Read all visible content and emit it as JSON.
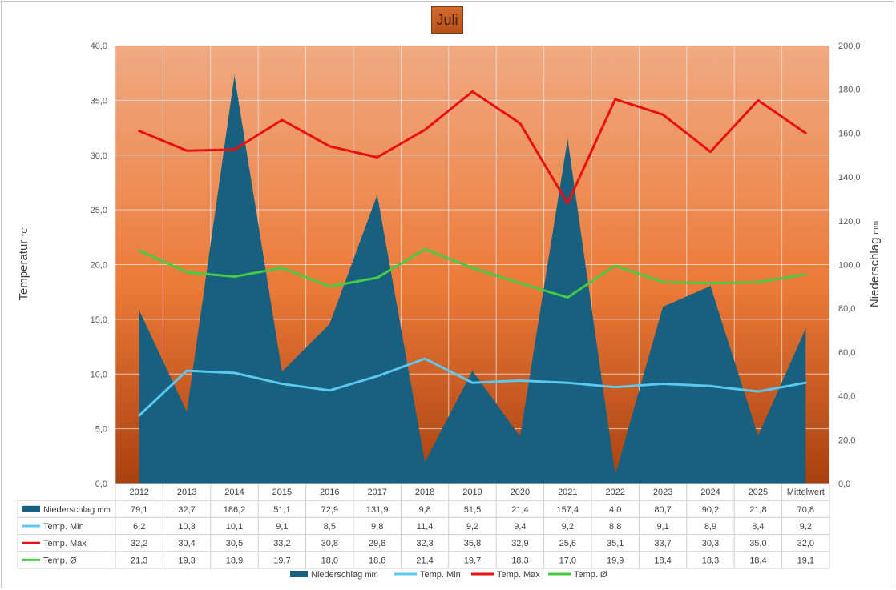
{
  "chart_data": {
    "type": "line",
    "title": "Juli",
    "categories": [
      "2012",
      "2013",
      "2014",
      "2015",
      "2016",
      "2017",
      "2018",
      "2019",
      "2020",
      "2021",
      "2022",
      "2023",
      "2024",
      "2025",
      "Mittelwert"
    ],
    "y_left": {
      "label": "Temperatur",
      "unit": "°C",
      "range": [
        0,
        40
      ],
      "ticks": [
        "0,0",
        "5,0",
        "10,0",
        "15,0",
        "20,0",
        "25,0",
        "30,0",
        "35,0",
        "40,0"
      ]
    },
    "y_right": {
      "label": "Niederschlag",
      "unit": "mm",
      "range": [
        0,
        200
      ],
      "ticks": [
        "0,0",
        "20,0",
        "40,0",
        "60,0",
        "80,0",
        "100,0",
        "120,0",
        "140,0",
        "160,0",
        "180,0",
        "200,0"
      ]
    },
    "grid": true,
    "legend_position": "bottom",
    "series": [
      {
        "name": "Niederschlag",
        "unit": "mm",
        "kind": "area",
        "axis": "right",
        "color": "#17607f",
        "values": [
          79.1,
          32.7,
          186.2,
          51.1,
          72.9,
          131.9,
          9.8,
          51.5,
          21.4,
          157.4,
          4.0,
          80.7,
          90.2,
          21.8,
          70.8
        ],
        "labels": [
          "79,1",
          "32,7",
          "186,2",
          "51,1",
          "72,9",
          "131,9",
          "9,8",
          "51,5",
          "21,4",
          "157,4",
          "4,0",
          "80,7",
          "90,2",
          "21,8",
          "70,8"
        ]
      },
      {
        "name": "Temp. Min",
        "kind": "line",
        "axis": "left",
        "color": "#5bc8f0",
        "values": [
          6.2,
          10.3,
          10.1,
          9.1,
          8.5,
          9.8,
          11.4,
          9.2,
          9.4,
          9.2,
          8.8,
          9.1,
          8.9,
          8.4,
          9.2
        ],
        "labels": [
          "6,2",
          "10,3",
          "10,1",
          "9,1",
          "8,5",
          "9,8",
          "11,4",
          "9,2",
          "9,4",
          "9,2",
          "8,8",
          "9,1",
          "8,9",
          "8,4",
          "9,2"
        ]
      },
      {
        "name": "Temp. Max",
        "kind": "line",
        "axis": "left",
        "color": "#e81010",
        "values": [
          32.2,
          30.4,
          30.5,
          33.2,
          30.8,
          29.8,
          32.3,
          35.8,
          32.9,
          25.6,
          35.1,
          33.7,
          30.3,
          35.0,
          32.0
        ],
        "labels": [
          "32,2",
          "30,4",
          "30,5",
          "33,2",
          "30,8",
          "29,8",
          "32,3",
          "35,8",
          "32,9",
          "25,6",
          "35,1",
          "33,7",
          "30,3",
          "35,0",
          "32,0"
        ]
      },
      {
        "name": "Temp. Ø",
        "kind": "line",
        "axis": "left",
        "color": "#44cc44",
        "values": [
          21.3,
          19.3,
          18.9,
          19.7,
          18.0,
          18.8,
          21.4,
          19.7,
          18.3,
          17.0,
          19.9,
          18.4,
          18.3,
          18.4,
          19.1
        ],
        "labels": [
          "21,3",
          "19,3",
          "18,9",
          "19,7",
          "18,0",
          "18,8",
          "21,4",
          "19,7",
          "18,3",
          "17,0",
          "19,9",
          "18,4",
          "18,3",
          "18,4",
          "19,1"
        ]
      }
    ]
  }
}
